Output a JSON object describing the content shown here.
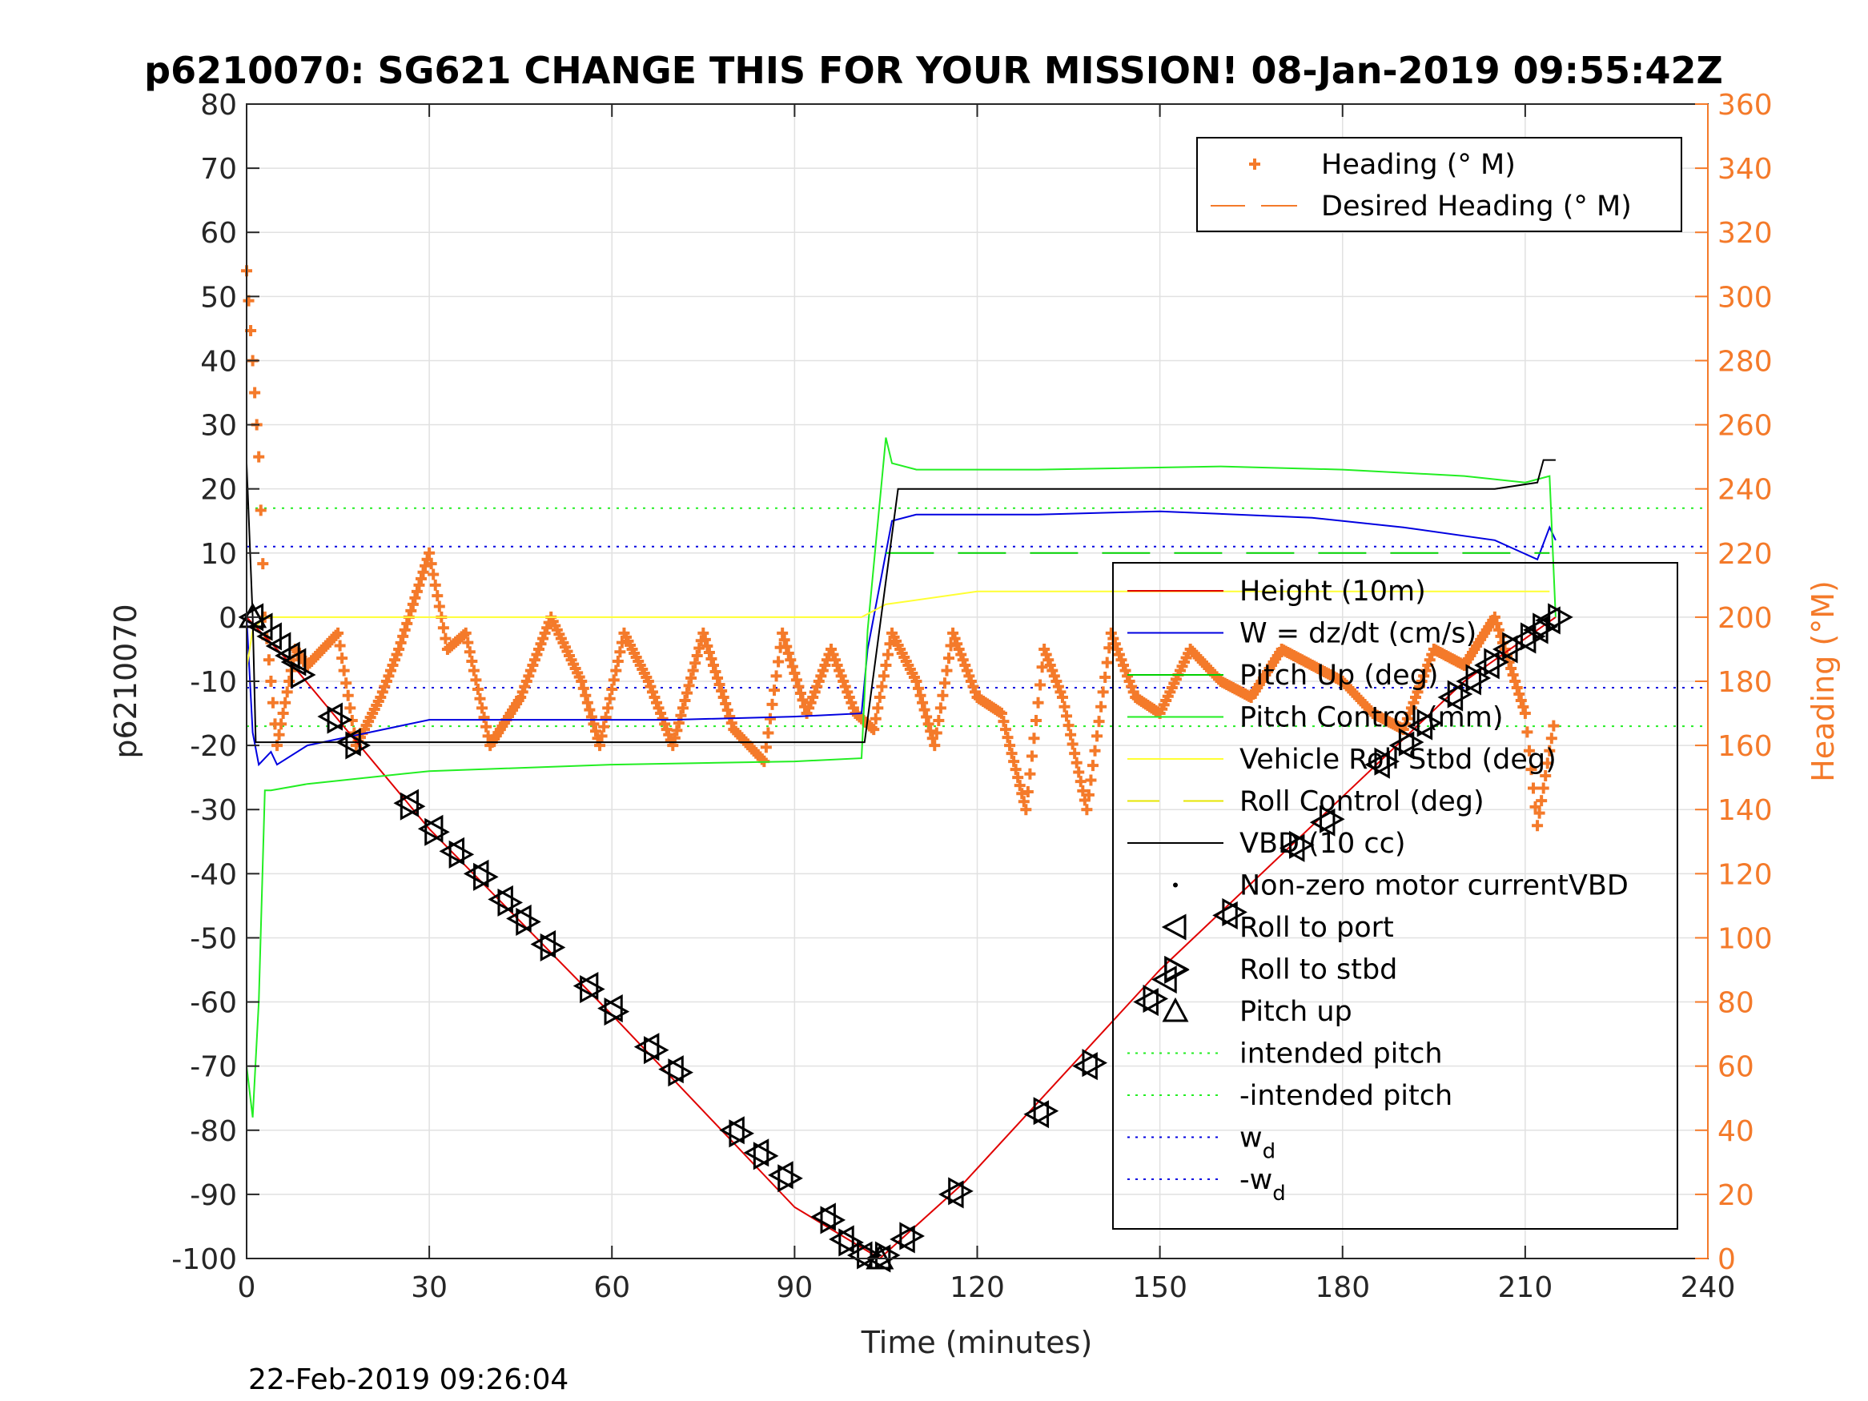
{
  "chart_data": {
    "type": "line",
    "title": "p6210070: SG621 CHANGE THIS FOR YOUR MISSION! 08-Jan-2019 09:55:42Z",
    "xlabel": "Time (minutes)",
    "ylabel": "p6210070",
    "ylabel_right": "Heading (°M)",
    "timestamp": "22-Feb-2019 09:26:04",
    "xlim": [
      0,
      240
    ],
    "ylim": [
      -100,
      80
    ],
    "ylim_right": [
      0,
      360
    ],
    "xticks": [
      0,
      30,
      60,
      90,
      120,
      150,
      180,
      210,
      240
    ],
    "yticks": [
      -100,
      -90,
      -80,
      -70,
      -60,
      -50,
      -40,
      -30,
      -20,
      -10,
      0,
      10,
      20,
      30,
      40,
      50,
      60,
      70,
      80
    ],
    "yticks_right": [
      0,
      20,
      40,
      60,
      80,
      100,
      120,
      140,
      160,
      180,
      200,
      220,
      240,
      260,
      280,
      300,
      320,
      340,
      360
    ],
    "grid": true,
    "colors": {
      "height": "#e00000",
      "w": "#0000e0",
      "pitch": "#00d000",
      "pitch_control": "#22ee22",
      "roll": "#ffff33",
      "roll_control": "#e6e600",
      "vbd": "#000000",
      "heading": "#f47a2a",
      "axis": "#262626",
      "grid": "#e1e1e1"
    },
    "legend_left": {
      "placement": "top-right",
      "entries": [
        "Heading (° M)",
        "Desired Heading (° M)"
      ]
    },
    "legend_main": {
      "placement": "right",
      "entries": [
        {
          "label": "Height (10m)",
          "style": "line-red"
        },
        {
          "label": "W = dz/dt (cm/s)",
          "style": "line-blue"
        },
        {
          "label": "Pitch Up (deg)",
          "style": "line-green"
        },
        {
          "label": "Pitch Control (mm)",
          "style": "line-lightgreen"
        },
        {
          "label": "Vehicle Roll Stbd (deg)",
          "style": "line-yellow"
        },
        {
          "label": "Roll Control (deg)",
          "style": "dash-yellow"
        },
        {
          "label": "VBD (10 cc)",
          "style": "line-black"
        },
        {
          "label": "Non-zero motor currentVBD",
          "style": "dot"
        },
        {
          "label": "Roll to port",
          "style": "tri-left"
        },
        {
          "label": "Roll to stbd",
          "style": "tri-right"
        },
        {
          "label": "Pitch up",
          "style": "tri-up"
        },
        {
          "label": "intended pitch",
          "style": "dot-green"
        },
        {
          "label": "-intended pitch",
          "style": "dot-green"
        },
        {
          "label": "w",
          "sub": "d",
          "style": "dot-blue"
        },
        {
          "label": "-w",
          "sub": "d",
          "style": "dot-blue"
        }
      ]
    },
    "reference_lines": {
      "intended_pitch": 17,
      "minus_intended_pitch": -17,
      "w_d": 11,
      "minus_w_d": -11
    },
    "series": [
      {
        "name": "Height (10m)",
        "x": [
          0,
          1,
          8,
          30,
          60,
          90,
          104,
          118,
          150,
          180,
          200,
          215
        ],
        "y": [
          0,
          -1,
          -8,
          -33,
          -62,
          -92,
          -100,
          -88,
          -55,
          -28,
          -10,
          0
        ]
      },
      {
        "name": "W = dz/dt (cm/s)",
        "x": [
          0,
          1,
          2,
          4,
          5,
          10,
          20,
          30,
          50,
          70,
          90,
          101,
          102,
          106,
          110,
          130,
          150,
          175,
          190,
          205,
          212,
          214,
          215
        ],
        "y": [
          0,
          -18,
          -23,
          -21,
          -23,
          -20,
          -18,
          -16,
          -16,
          -16,
          -15.5,
          -15,
          -5,
          15,
          16,
          16,
          16.5,
          15.5,
          14,
          12,
          9,
          14,
          12
        ]
      },
      {
        "name": "Pitch Up (deg)",
        "x": [
          0,
          1,
          2,
          3,
          4,
          10,
          30,
          60,
          90,
          101,
          102,
          105,
          106,
          110,
          130,
          160,
          180,
          200,
          210,
          214,
          215
        ],
        "y": [
          -70,
          -78,
          -60,
          -27,
          -27,
          -26,
          -24,
          -23,
          -22.5,
          -22,
          -2,
          28,
          24,
          23,
          23,
          23.5,
          23,
          22,
          21,
          22,
          0
        ]
      },
      {
        "name": "Vehicle Roll Stbd (deg)",
        "x": [
          0,
          1,
          3,
          5,
          8,
          15,
          30,
          60,
          90,
          101,
          105,
          120,
          150,
          180,
          200,
          214
        ],
        "y": [
          -8,
          -2,
          0,
          0,
          0,
          0,
          0,
          0,
          0,
          0,
          2,
          4,
          4,
          4,
          4,
          4
        ]
      },
      {
        "name": "Roll Control (deg)",
        "x": [
          105,
          214
        ],
        "y": [
          10,
          10
        ]
      },
      {
        "name": "VBD (10 cc)",
        "x": [
          0,
          1,
          1.5,
          5,
          100,
          101.5,
          107,
          108,
          205,
          212,
          213,
          215
        ],
        "y": [
          24,
          0,
          -19.5,
          -19.5,
          -19.5,
          -19.5,
          20,
          20,
          20,
          21,
          24.5,
          24.5
        ]
      },
      {
        "name": "Heading (° M)",
        "axis": "right",
        "x": [
          0,
          1,
          2,
          3,
          5,
          8,
          10,
          15,
          18,
          22,
          25,
          30,
          33,
          36,
          40,
          45,
          50,
          55,
          58,
          62,
          66,
          70,
          75,
          80,
          85,
          88,
          92,
          96,
          100,
          103,
          106,
          110,
          113,
          116,
          120,
          124,
          128,
          131,
          134,
          138,
          142,
          146,
          150,
          155,
          160,
          165,
          170,
          175,
          180,
          185,
          190,
          195,
          200,
          205,
          210,
          212,
          215
        ],
        "y": [
          308,
          280,
          250,
          200,
          160,
          190,
          185,
          195,
          160,
          175,
          190,
          220,
          190,
          195,
          160,
          175,
          200,
          180,
          160,
          195,
          180,
          160,
          195,
          165,
          155,
          195,
          170,
          190,
          170,
          165,
          195,
          180,
          160,
          195,
          175,
          170,
          140,
          190,
          175,
          140,
          195,
          175,
          170,
          190,
          180,
          175,
          190,
          185,
          180,
          170,
          165,
          190,
          185,
          200,
          170,
          135,
          170
        ]
      }
    ],
    "markers": {
      "roll_to_port": {
        "x": [
          1,
          2.5,
          4,
          5.5,
          7,
          8,
          14,
          17,
          26.5,
          30.5,
          34,
          38,
          42,
          45,
          49,
          56,
          60,
          66,
          70,
          80,
          84,
          88,
          95,
          98,
          101,
          104,
          108,
          116,
          130,
          138,
          148,
          151,
          161,
          172,
          177,
          186,
          190,
          193,
          198,
          201,
          204,
          207,
          210,
          212,
          214
        ],
        "y": [
          0,
          -1.5,
          -3,
          -4.5,
          -6,
          -7,
          -15.5,
          -19.5,
          -29,
          -33,
          -36.5,
          -40,
          -44,
          -47,
          -51,
          -57.5,
          -61,
          -67,
          -70.5,
          -80,
          -83.5,
          -87,
          -93.5,
          -97,
          -99.5,
          -100,
          -97,
          -90,
          -77.5,
          -70,
          -60,
          -56.5,
          -46.5,
          -36,
          -32,
          -23,
          -20,
          -17,
          -12.5,
          -10,
          -7.5,
          -5,
          -3.5,
          -2,
          -0.5
        ]
      },
      "roll_to_stbd": {
        "x": [
          9,
          15,
          18,
          27,
          31,
          35,
          39,
          43,
          46,
          50,
          56.5,
          60.5,
          67,
          71,
          81,
          85,
          89,
          96,
          99,
          102,
          105,
          109,
          117,
          131,
          139,
          149,
          152.5,
          162,
          173,
          178,
          187,
          191,
          194,
          199,
          202,
          205,
          208,
          211,
          213,
          215.5
        ],
        "y": [
          -9,
          -16,
          -20,
          -29.5,
          -33.5,
          -37,
          -40.5,
          -44.5,
          -47.5,
          -51.5,
          -58,
          -61.5,
          -67.5,
          -71,
          -80.5,
          -84,
          -87.5,
          -94,
          -97.5,
          -99.5,
          -99.5,
          -96.5,
          -89.5,
          -77,
          -69.5,
          -59.5,
          -55,
          -46,
          -35.5,
          -31.5,
          -22.5,
          -19.5,
          -16.5,
          -12,
          -9.5,
          -7,
          -4.5,
          -3,
          -1.5,
          0
        ]
      },
      "pitch_up": {
        "x": [
          1,
          104
        ],
        "y": [
          0,
          -100
        ]
      }
    }
  }
}
